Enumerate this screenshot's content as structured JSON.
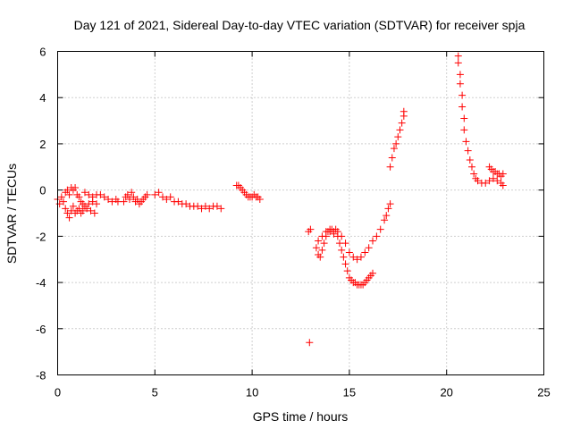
{
  "chart_data": {
    "type": "scatter",
    "title": "Day 121 of 2021, Sidereal Day-to-day VTEC variation (SDTVAR) for receiver spja",
    "xlabel": "GPS time / hours",
    "ylabel": "SDTVAR / TECUs",
    "xlim": [
      0,
      25
    ],
    "ylim": [
      -8,
      6
    ],
    "xticks": [
      0,
      5,
      10,
      15,
      20,
      25
    ],
    "yticks": [
      -8,
      -6,
      -4,
      -2,
      0,
      2,
      4,
      6
    ],
    "grid": true,
    "marker": "+",
    "color": "#ff0000",
    "series": [
      {
        "name": "SDTVAR",
        "segments": [
          [
            [
              0.0,
              -0.4
            ],
            [
              0.1,
              -0.6
            ],
            [
              0.2,
              -0.3
            ],
            [
              0.3,
              -0.5
            ],
            [
              0.4,
              -0.8
            ],
            [
              0.5,
              -1.0
            ],
            [
              0.6,
              -1.2
            ],
            [
              0.7,
              -0.9
            ],
            [
              0.8,
              -0.7
            ],
            [
              0.9,
              -1.0
            ],
            [
              1.0,
              -0.9
            ],
            [
              1.1,
              -0.8
            ],
            [
              1.2,
              -1.0
            ],
            [
              1.3,
              -0.9
            ],
            [
              1.5,
              -0.8
            ],
            [
              1.7,
              -0.9
            ],
            [
              1.9,
              -1.0
            ]
          ],
          [
            [
              0.4,
              -0.1
            ],
            [
              0.5,
              0.0
            ],
            [
              0.6,
              -0.2
            ],
            [
              0.7,
              0.1
            ],
            [
              0.8,
              0.0
            ],
            [
              0.9,
              0.1
            ],
            [
              1.0,
              -0.2
            ],
            [
              1.1,
              -0.3
            ],
            [
              1.2,
              -0.5
            ],
            [
              1.3,
              -0.6
            ],
            [
              1.4,
              -0.7
            ],
            [
              1.6,
              -0.6
            ],
            [
              1.8,
              -0.5
            ],
            [
              2.0,
              -0.6
            ]
          ],
          [
            [
              1.4,
              -0.1
            ],
            [
              1.6,
              -0.2
            ],
            [
              1.8,
              -0.3
            ],
            [
              2.0,
              -0.2
            ],
            [
              2.2,
              -0.2
            ],
            [
              2.4,
              -0.3
            ],
            [
              2.6,
              -0.4
            ],
            [
              2.8,
              -0.5
            ],
            [
              3.0,
              -0.4
            ],
            [
              3.1,
              -0.5
            ]
          ],
          [
            [
              3.4,
              -0.5
            ],
            [
              3.5,
              -0.3
            ],
            [
              3.6,
              -0.2
            ],
            [
              3.7,
              -0.4
            ],
            [
              3.8,
              -0.1
            ],
            [
              3.9,
              -0.3
            ],
            [
              4.0,
              -0.5
            ],
            [
              4.1,
              -0.4
            ],
            [
              4.2,
              -0.6
            ],
            [
              4.3,
              -0.5
            ],
            [
              4.4,
              -0.4
            ],
            [
              4.5,
              -0.3
            ],
            [
              4.6,
              -0.2
            ]
          ],
          [
            [
              5.0,
              -0.2
            ],
            [
              5.2,
              -0.1
            ],
            [
              5.4,
              -0.3
            ],
            [
              5.6,
              -0.4
            ],
            [
              5.8,
              -0.3
            ],
            [
              6.0,
              -0.5
            ],
            [
              6.2,
              -0.5
            ],
            [
              6.4,
              -0.6
            ],
            [
              6.6,
              -0.6
            ],
            [
              6.8,
              -0.7
            ],
            [
              7.0,
              -0.7
            ],
            [
              7.2,
              -0.7
            ],
            [
              7.4,
              -0.8
            ],
            [
              7.6,
              -0.7
            ],
            [
              7.8,
              -0.8
            ],
            [
              8.0,
              -0.7
            ],
            [
              8.2,
              -0.7
            ],
            [
              8.4,
              -0.8
            ]
          ],
          [
            [
              9.2,
              0.2
            ],
            [
              9.3,
              0.2
            ],
            [
              9.4,
              0.1
            ],
            [
              9.5,
              0.0
            ],
            [
              9.6,
              -0.1
            ],
            [
              9.7,
              -0.2
            ],
            [
              9.8,
              -0.3
            ],
            [
              9.9,
              -0.3
            ],
            [
              10.0,
              -0.3
            ],
            [
              10.1,
              -0.2
            ],
            [
              10.2,
              -0.3
            ],
            [
              10.3,
              -0.3
            ],
            [
              10.4,
              -0.4
            ]
          ],
          [
            [
              12.9,
              -1.8
            ],
            [
              13.0,
              -1.7
            ]
          ],
          [
            [
              12.95,
              -6.6
            ]
          ],
          [
            [
              13.3,
              -2.5
            ],
            [
              13.4,
              -2.8
            ],
            [
              13.5,
              -2.9
            ],
            [
              13.6,
              -2.6
            ],
            [
              13.7,
              -2.3
            ],
            [
              13.8,
              -2.0
            ],
            [
              13.9,
              -1.8
            ],
            [
              14.0,
              -1.8
            ],
            [
              14.1,
              -1.7
            ],
            [
              14.2,
              -1.9
            ],
            [
              14.3,
              -1.7
            ],
            [
              14.4,
              -2.0
            ],
            [
              14.5,
              -2.3
            ],
            [
              14.6,
              -2.6
            ],
            [
              14.7,
              -2.9
            ],
            [
              14.8,
              -3.2
            ],
            [
              14.9,
              -3.5
            ],
            [
              15.0,
              -3.8
            ],
            [
              15.1,
              -3.9
            ],
            [
              15.2,
              -4.0
            ],
            [
              15.3,
              -4.0
            ],
            [
              15.4,
              -4.1
            ],
            [
              15.5,
              -4.1
            ],
            [
              15.6,
              -4.1
            ],
            [
              15.7,
              -4.1
            ],
            [
              15.8,
              -4.0
            ],
            [
              15.9,
              -3.9
            ],
            [
              16.0,
              -3.8
            ],
            [
              16.1,
              -3.7
            ],
            [
              16.2,
              -3.6
            ]
          ],
          [
            [
              13.4,
              -2.2
            ],
            [
              13.6,
              -2.0
            ],
            [
              13.8,
              -1.8
            ],
            [
              14.0,
              -1.7
            ],
            [
              14.2,
              -1.8
            ],
            [
              14.4,
              -1.8
            ],
            [
              14.6,
              -2.0
            ],
            [
              14.8,
              -2.3
            ],
            [
              15.0,
              -2.7
            ],
            [
              15.2,
              -2.9
            ],
            [
              15.4,
              -3.0
            ],
            [
              15.6,
              -2.9
            ],
            [
              15.8,
              -2.7
            ],
            [
              16.0,
              -2.5
            ],
            [
              16.2,
              -2.2
            ],
            [
              16.4,
              -2.0
            ],
            [
              16.6,
              -1.7
            ],
            [
              16.8,
              -1.3
            ],
            [
              16.9,
              -1.1
            ],
            [
              17.0,
              -0.8
            ],
            [
              17.1,
              -0.6
            ]
          ],
          [
            [
              17.1,
              1.0
            ],
            [
              17.2,
              1.4
            ],
            [
              17.3,
              1.8
            ],
            [
              17.4,
              2.0
            ],
            [
              17.5,
              2.3
            ],
            [
              17.6,
              2.6
            ],
            [
              17.7,
              2.9
            ],
            [
              17.8,
              3.2
            ],
            [
              17.8,
              3.4
            ]
          ],
          [
            [
              20.6,
              5.8
            ],
            [
              20.6,
              5.5
            ],
            [
              20.7,
              5.0
            ],
            [
              20.7,
              4.6
            ],
            [
              20.8,
              4.1
            ],
            [
              20.8,
              3.6
            ],
            [
              20.9,
              3.1
            ],
            [
              20.9,
              2.6
            ],
            [
              21.0,
              2.1
            ],
            [
              21.1,
              1.7
            ],
            [
              21.2,
              1.3
            ],
            [
              21.3,
              1.0
            ],
            [
              21.4,
              0.7
            ],
            [
              21.5,
              0.5
            ],
            [
              21.6,
              0.4
            ],
            [
              21.8,
              0.3
            ],
            [
              22.0,
              0.3
            ],
            [
              22.2,
              0.4
            ],
            [
              22.4,
              0.5
            ],
            [
              22.6,
              0.4
            ],
            [
              22.8,
              0.3
            ],
            [
              22.9,
              0.2
            ]
          ],
          [
            [
              22.2,
              1.0
            ],
            [
              22.3,
              0.9
            ],
            [
              22.4,
              0.8
            ],
            [
              22.5,
              0.8
            ],
            [
              22.6,
              0.7
            ],
            [
              22.7,
              0.7
            ],
            [
              22.8,
              0.6
            ],
            [
              22.9,
              0.7
            ]
          ]
        ]
      }
    ]
  }
}
